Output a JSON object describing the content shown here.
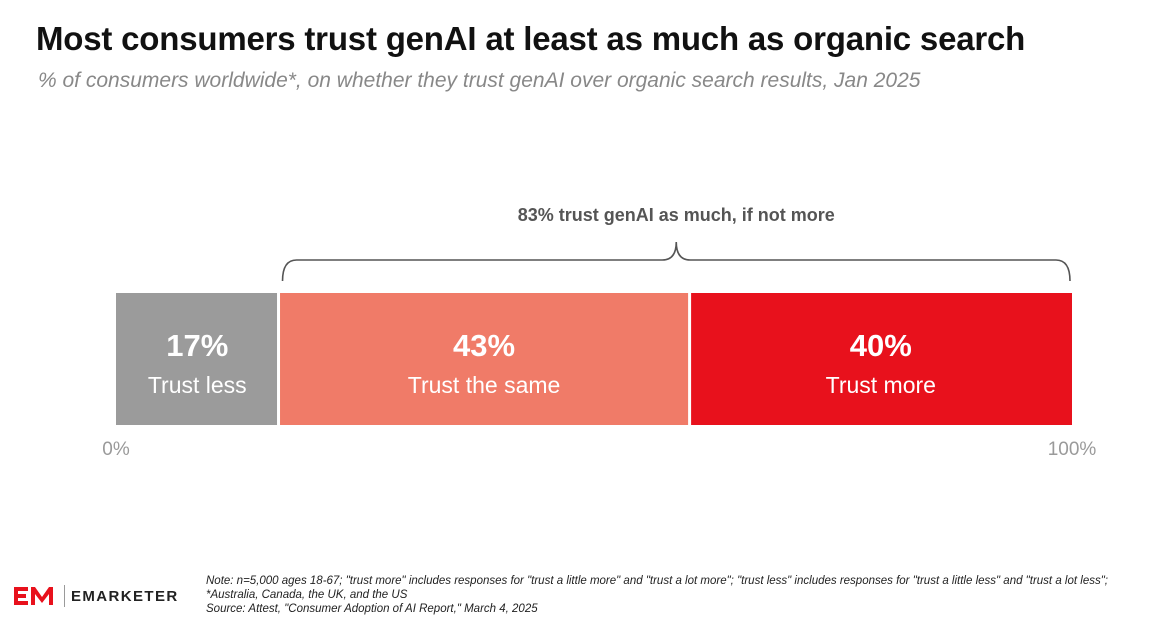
{
  "header": {
    "title": "Most consumers trust genAI at least as much as organic search",
    "subtitle": "% of consumers worldwide*, on whether they trust genAI over organic search results, Jan 2025"
  },
  "chart_data": {
    "type": "bar",
    "orientation": "horizontal-stacked",
    "categories": [
      "Trust less",
      "Trust the same",
      "Trust more"
    ],
    "values": [
      17,
      43,
      40
    ],
    "value_labels": [
      "17%",
      "43%",
      "40%"
    ],
    "colors": [
      "#9b9b9b",
      "#f07b68",
      "#e8111c"
    ],
    "xlim": [
      0,
      100
    ],
    "axis_labels": {
      "min": "0%",
      "max": "100%"
    },
    "annotation": {
      "text": "83% trust genAI as much, if not more",
      "spans": [
        "Trust the same",
        "Trust more"
      ]
    },
    "grid": false,
    "legend": "none"
  },
  "footer": {
    "logo_text": "EMARKETER",
    "note_line1": "Note: n=5,000 ages 18-67; \"trust more\" includes responses for \"trust a little more\" and \"trust a lot more\"; \"trust less\" includes responses for \"trust a little less\" and \"trust a lot less\"; *Australia, Canada, the UK, and the US",
    "source": "Source: Attest, \"Consumer Adoption of AI Report,\" March 4, 2025",
    "logo_colors": {
      "mark": "#e8111c",
      "divider": "#9a9a9a"
    }
  }
}
